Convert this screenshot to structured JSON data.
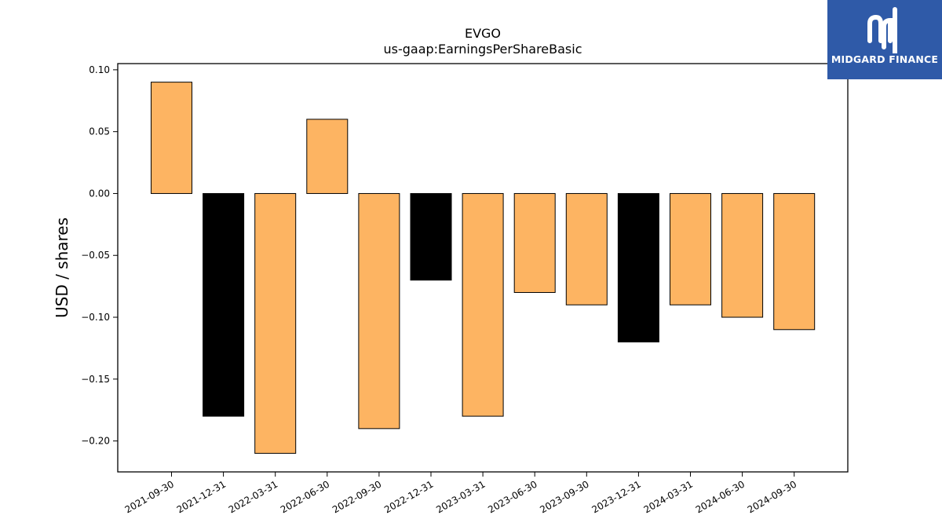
{
  "chart_data": {
    "type": "bar",
    "title": "EVGO",
    "subtitle": "us-gaap:EarningsPerShareBasic",
    "xlabel": "",
    "ylabel": "USD / shares",
    "categories": [
      "2021-09-30",
      "2021-12-31",
      "2022-03-31",
      "2022-06-30",
      "2022-09-30",
      "2022-12-31",
      "2023-03-31",
      "2023-06-30",
      "2023-09-30",
      "2023-12-31",
      "2024-03-31",
      "2024-06-30",
      "2024-09-30"
    ],
    "values": [
      0.09,
      -0.18,
      -0.21,
      0.06,
      -0.19,
      -0.07,
      -0.18,
      -0.08,
      -0.09,
      -0.12,
      -0.09,
      -0.1,
      -0.11
    ],
    "bar_colors": [
      "#fdb462",
      "#000000",
      "#fdb462",
      "#fdb462",
      "#fdb462",
      "#000000",
      "#fdb462",
      "#fdb462",
      "#fdb462",
      "#000000",
      "#fdb462",
      "#fdb462",
      "#fdb462"
    ],
    "ylim": [
      -0.225,
      0.105
    ],
    "yticks": [
      0.1,
      0.05,
      0.0,
      -0.05,
      -0.1,
      -0.15,
      -0.2
    ],
    "ytick_labels": [
      "0.10",
      "0.05",
      "0.00",
      "−0.05",
      "−0.10",
      "−0.15",
      "−0.20"
    ],
    "grid": false,
    "legend": "none"
  },
  "logo": {
    "text": "MIDGARD FINANCE",
    "background": "#2f5aa8",
    "icon": "midgard-logo-icon"
  }
}
